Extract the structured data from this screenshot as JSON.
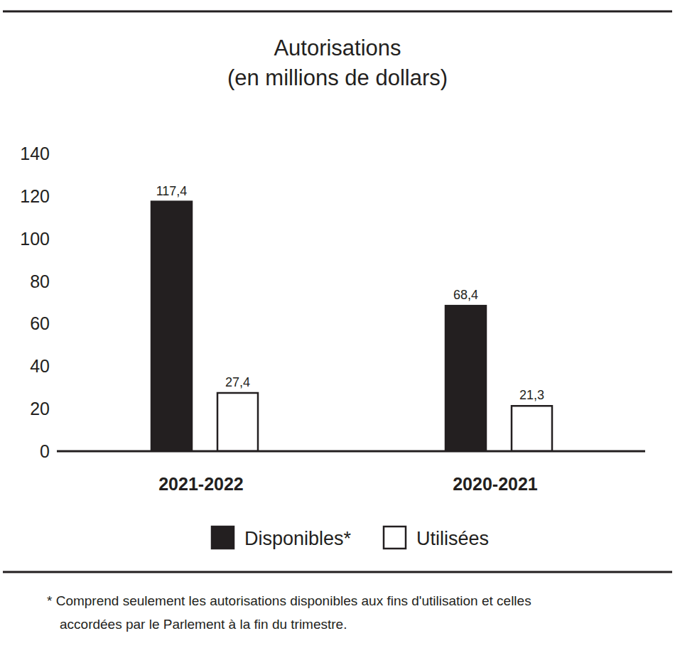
{
  "chart_data": {
    "type": "bar",
    "title": "Autorisations",
    "subtitle": "(en millions de dollars)",
    "categories": [
      "2021-2022",
      "2020-2021"
    ],
    "series": [
      {
        "name": "Disponibles*",
        "color": "#231f20",
        "values": [
          117.4,
          68.4
        ],
        "value_labels": [
          "117,4",
          "68,4"
        ]
      },
      {
        "name": "Utilisées",
        "color": "#ffffff",
        "values": [
          27.4,
          21.3
        ],
        "value_labels": [
          "27,4",
          "21,3"
        ]
      }
    ],
    "ylim": [
      0,
      140
    ],
    "yticks": [
      0,
      20,
      40,
      60,
      80,
      100,
      120,
      140
    ],
    "grid": false,
    "legend": "bottom",
    "data_labels": true,
    "annotations": [
      "* Comprend seulement les autorisations disponibles aux fins d'utilisation et celles",
      "accordées par le Parlement à la fin du trimestre."
    ]
  }
}
